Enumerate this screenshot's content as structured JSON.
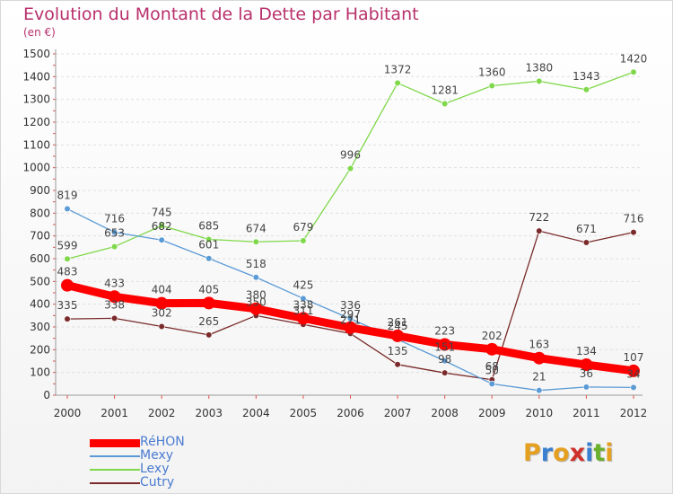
{
  "title": "Evolution du Montant de la Dette par Habitant",
  "subtitle": "(en €)",
  "logo": {
    "letters": [
      "P",
      "r",
      "o",
      "x",
      "i",
      "t",
      "i"
    ],
    "colors": [
      "#e6a020",
      "#3a7fd0",
      "#e6a020",
      "#d0302c",
      "#3a7fd0",
      "#6ab02c",
      "#e6a020"
    ]
  },
  "chart_data": {
    "type": "line",
    "x": [
      "2000",
      "2001",
      "2002",
      "2003",
      "2004",
      "2005",
      "2006",
      "2007",
      "2008",
      "2009",
      "2010",
      "2011",
      "2012"
    ],
    "y_ticks": [
      "0",
      "100",
      "200",
      "300",
      "400",
      "500",
      "600",
      "700",
      "800",
      "900",
      "1000",
      "1100",
      "1200",
      "1300",
      "1400",
      "1500"
    ],
    "ylim": [
      0,
      1500
    ],
    "grid": "horizontal dashed",
    "legend": "bottom-left",
    "series": [
      {
        "name": "RéHON",
        "color": "#ff0000",
        "values": [
          483,
          433,
          404,
          405,
          380,
          338,
          297,
          261,
          223,
          202,
          163,
          134,
          107
        ],
        "labels": [
          "483",
          "433",
          "404",
          "405",
          "380",
          "338",
          "297",
          "261",
          "223",
          "202",
          "163",
          "134",
          "107"
        ]
      },
      {
        "name": "Mexy",
        "color": "#5b9bd5",
        "values": [
          819,
          716,
          682,
          601,
          518,
          425,
          336,
          245,
          151,
          50,
          21,
          36,
          34
        ],
        "labels": [
          "819",
          "716",
          "682",
          "601",
          "518",
          "425",
          "336",
          "245",
          "151",
          "50",
          "21",
          "36",
          "34"
        ]
      },
      {
        "name": "Lexy",
        "color": "#7fd84a",
        "values": [
          599,
          653,
          745,
          685,
          674,
          679,
          996,
          1372,
          1281,
          1360,
          1380,
          1343,
          1420
        ],
        "labels": [
          "599",
          "653",
          "745",
          "685",
          "674",
          "679",
          "996",
          "1372",
          "1281",
          "1360",
          "1380",
          "1343",
          "1420"
        ]
      },
      {
        "name": "Cutry",
        "color": "#7a2a2a",
        "values": [
          335,
          338,
          302,
          265,
          350,
          311,
          271,
          135,
          98,
          68,
          722,
          671,
          716
        ],
        "labels": [
          "335",
          "338",
          "302",
          "265",
          "350",
          "311",
          "271",
          "135",
          "98",
          "68",
          "722",
          "671",
          "716"
        ]
      }
    ]
  }
}
